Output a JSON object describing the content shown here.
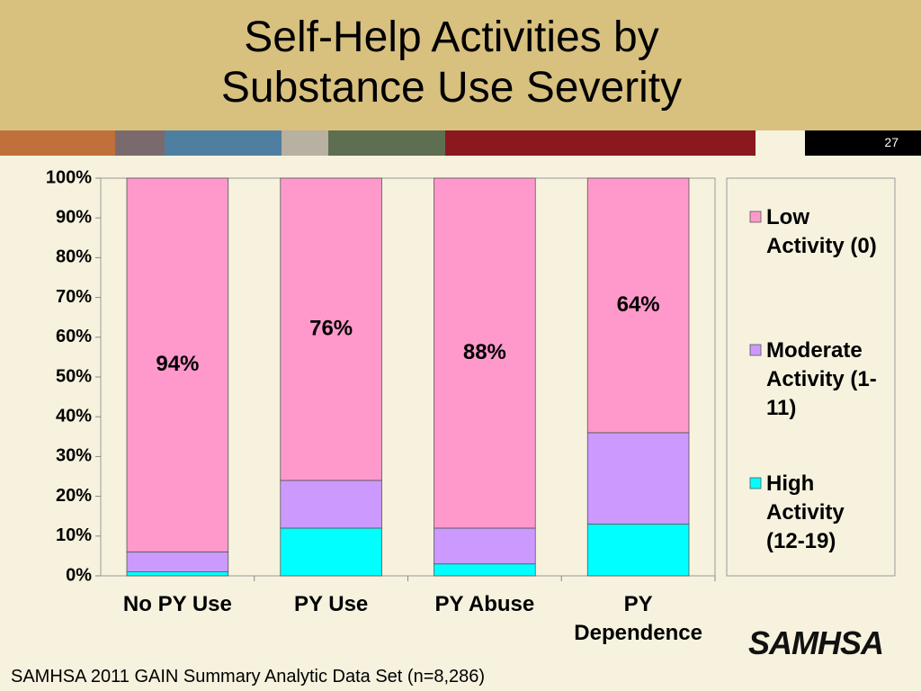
{
  "chart_data": {
    "type": "stacked_bar",
    "title": "Self-Help Activities by Substance Use Severity",
    "slide_number": "27",
    "footnote": "SAMHSA 2011 GAIN Summary Analytic Data Set (n=8,286)",
    "logo": "SAMHSA",
    "categories": [
      "No PY Use",
      "PY Use",
      "PY Abuse",
      "PY Dependence"
    ],
    "series": [
      {
        "name": "High Activity (12-19)",
        "color": "#00ffff",
        "values": [
          1,
          12,
          3,
          13
        ]
      },
      {
        "name": "Moderate Activity (1-11)",
        "color": "#cc99ff",
        "values": [
          5,
          12,
          9,
          23
        ]
      },
      {
        "name": "Low Activity (0)",
        "color": "#ff99cc",
        "values": [
          94,
          76,
          88,
          64
        ],
        "value_labels": [
          "94%",
          "76%",
          "88%",
          "64%"
        ]
      }
    ],
    "ylim": [
      0,
      100
    ],
    "yticks": [
      {
        "value": 0,
        "label": "0%"
      },
      {
        "value": 10,
        "label": "10%"
      },
      {
        "value": 20,
        "label": "20%"
      },
      {
        "value": 30,
        "label": "30%"
      },
      {
        "value": 40,
        "label": "40%"
      },
      {
        "value": 50,
        "label": "50%"
      },
      {
        "value": 60,
        "label": "60%"
      },
      {
        "value": 70,
        "label": "70%"
      },
      {
        "value": 80,
        "label": "80%"
      },
      {
        "value": 90,
        "label": "90%"
      },
      {
        "value": 100,
        "label": "100%"
      }
    ],
    "legend": "right"
  }
}
